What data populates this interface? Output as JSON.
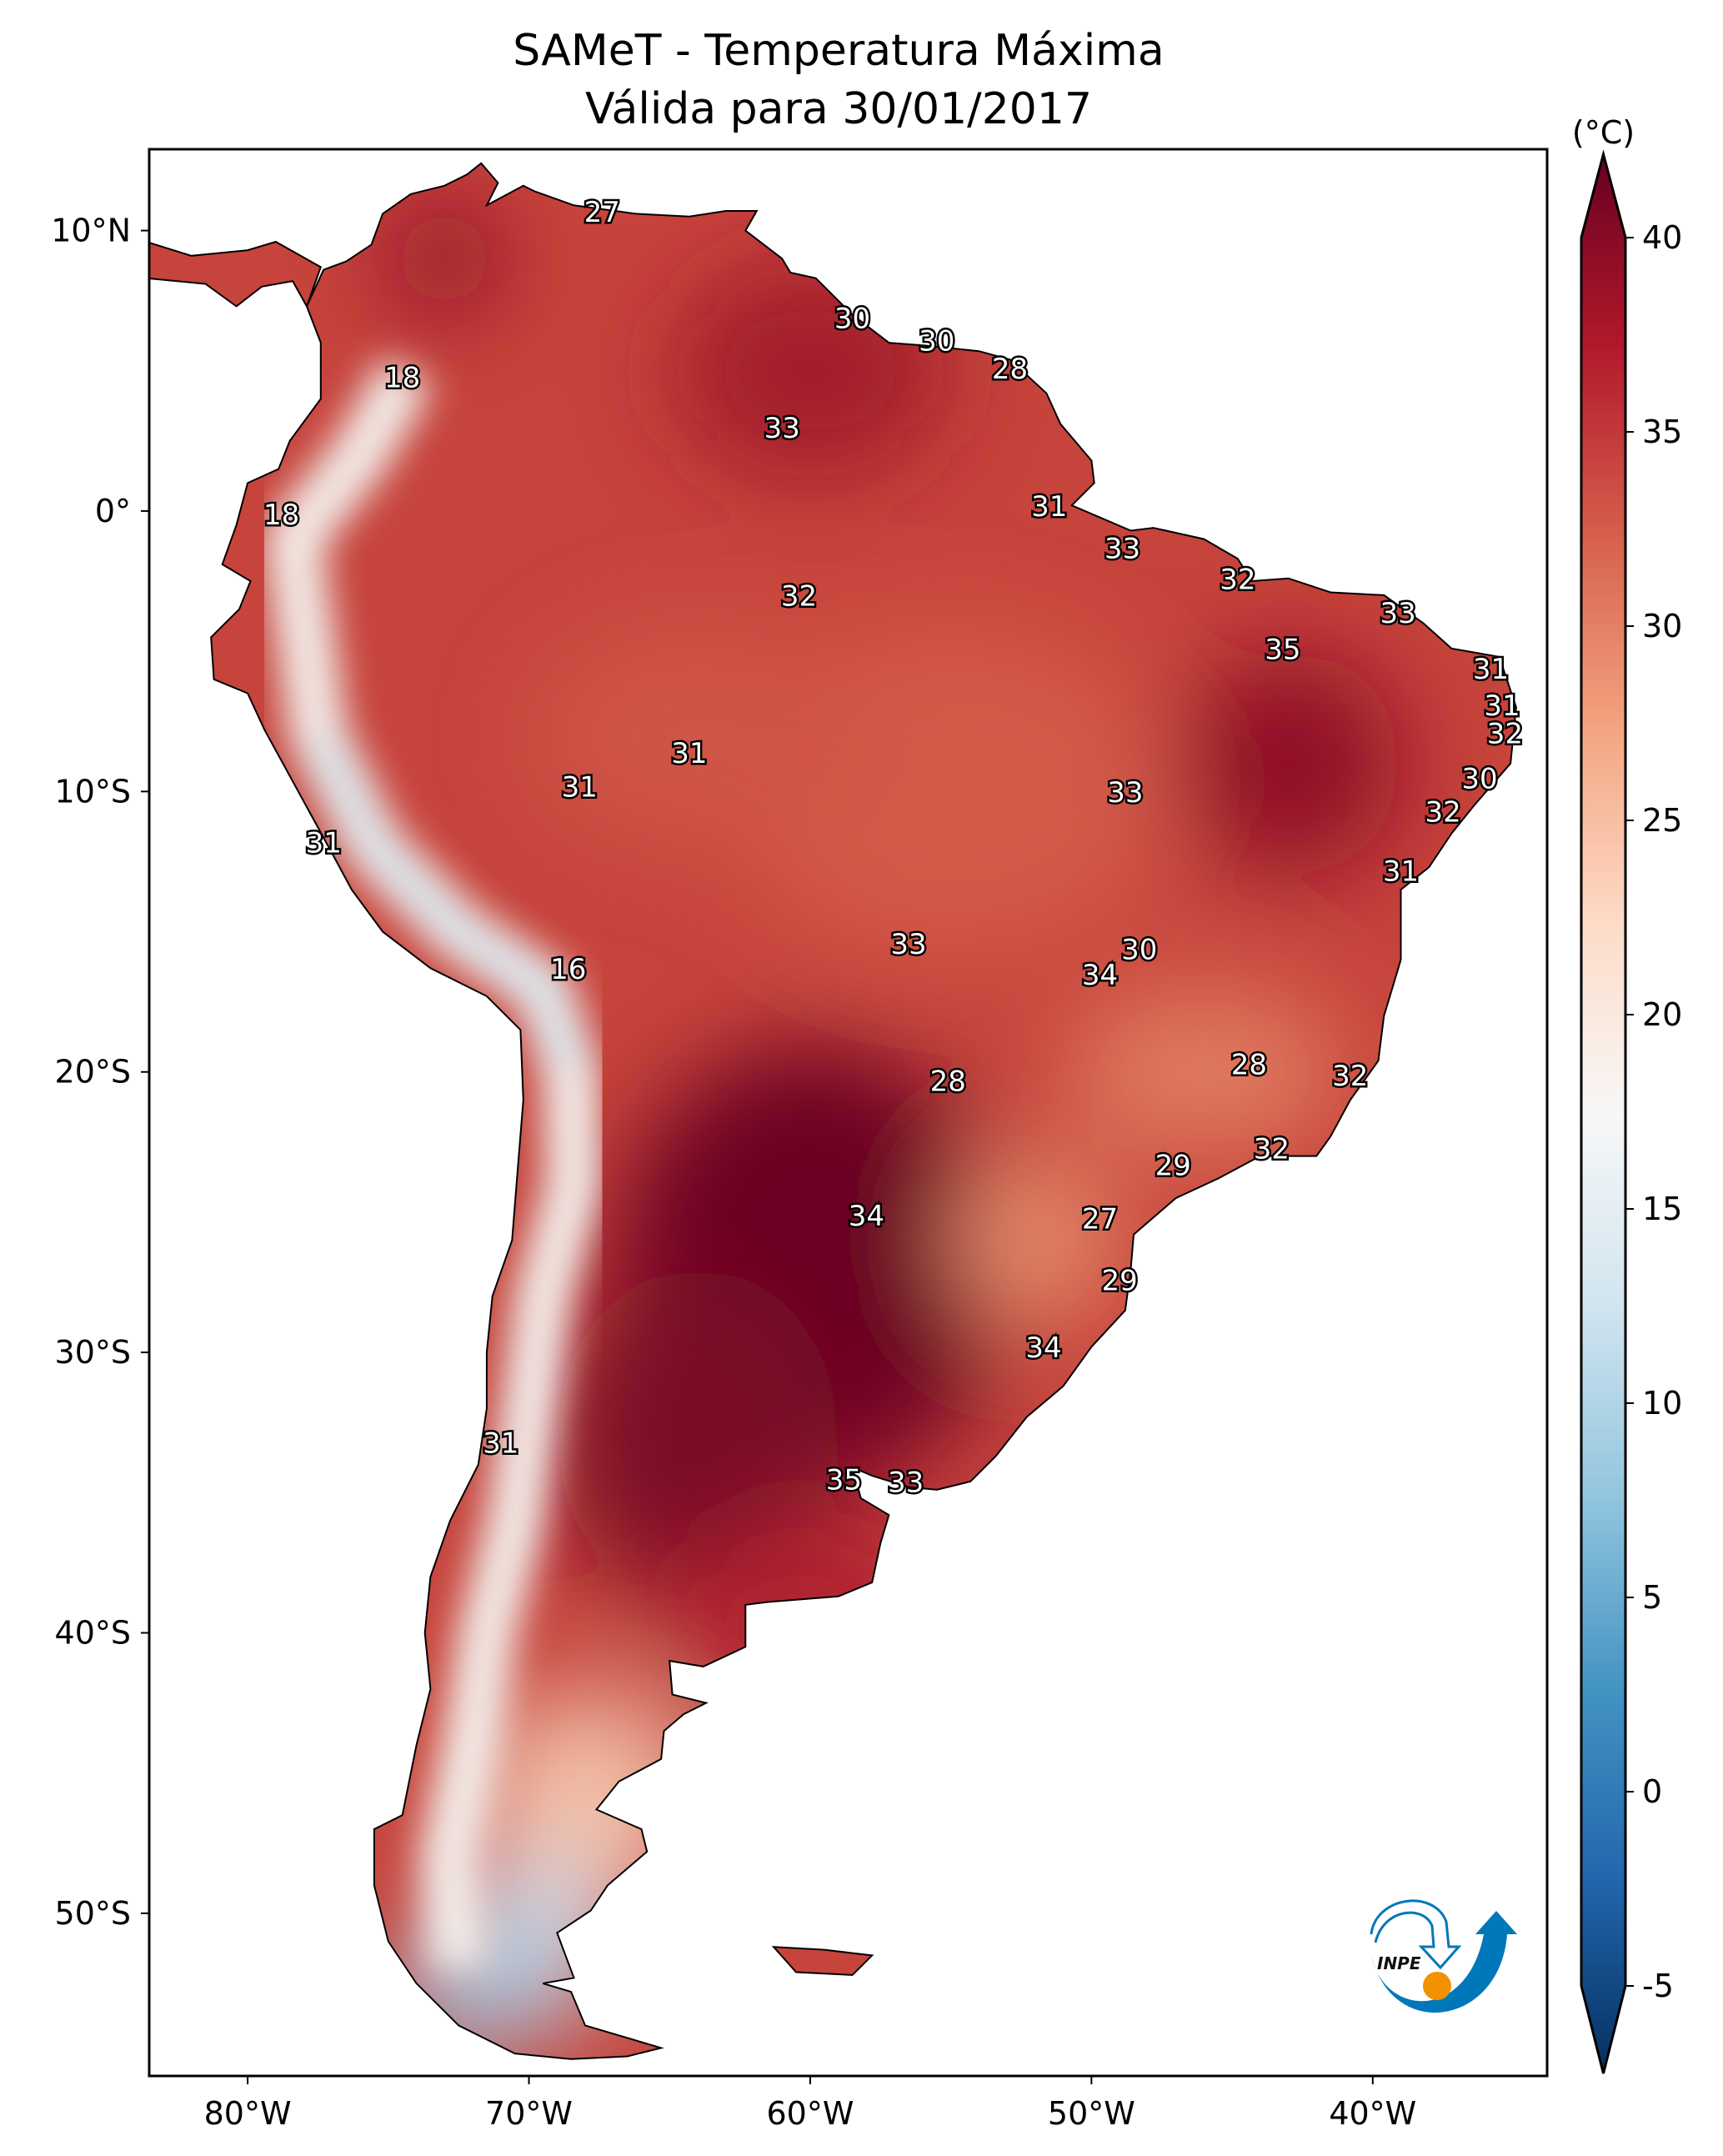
{
  "title": {
    "line1": "SAMeT - Temperatura Máxima",
    "line2": "Válida para 30/01/2017"
  },
  "logo": {
    "text": "INPE"
  },
  "chart_data": {
    "type": "map",
    "extent": {
      "lon": [
        -83.5,
        -33.8
      ],
      "lat": [
        -55.8,
        12.9
      ]
    },
    "x_ticks": [
      {
        "value": -80,
        "label": "80°W"
      },
      {
        "value": -70,
        "label": "70°W"
      },
      {
        "value": -60,
        "label": "60°W"
      },
      {
        "value": -50,
        "label": "50°W"
      },
      {
        "value": -40,
        "label": "40°W"
      }
    ],
    "y_ticks": [
      {
        "value": 10,
        "label": "10°N"
      },
      {
        "value": 0,
        "label": "0°"
      },
      {
        "value": -10,
        "label": "10°S"
      },
      {
        "value": -20,
        "label": "20°S"
      },
      {
        "value": -30,
        "label": "30°S"
      },
      {
        "value": -40,
        "label": "40°S"
      },
      {
        "value": -50,
        "label": "50°S"
      }
    ],
    "colorbar": {
      "unit": "(°C)",
      "range": [
        -5,
        40
      ],
      "extend": "both",
      "colormap": "RdBu_r",
      "ticks": [
        -5,
        0,
        5,
        10,
        15,
        20,
        25,
        30,
        35,
        40
      ],
      "colors": [
        "#053061",
        "#2166ac",
        "#4393c3",
        "#92c5de",
        "#d1e5f0",
        "#f7f7f7",
        "#fddbc7",
        "#f4a582",
        "#d6604d",
        "#b2182b",
        "#67001f"
      ]
    },
    "station_labels": [
      {
        "lon": -67.4,
        "lat": 10.6,
        "value": "27"
      },
      {
        "lon": -58.5,
        "lat": 6.8,
        "value": "30"
      },
      {
        "lon": -55.5,
        "lat": 6.0,
        "value": "30"
      },
      {
        "lon": -52.9,
        "lat": 5.0,
        "value": "28"
      },
      {
        "lon": -74.5,
        "lat": 4.7,
        "value": "18"
      },
      {
        "lon": -61.0,
        "lat": 2.9,
        "value": "33"
      },
      {
        "lon": -78.8,
        "lat": -0.2,
        "value": "18"
      },
      {
        "lon": -51.5,
        "lat": 0.1,
        "value": "31"
      },
      {
        "lon": -48.9,
        "lat": -1.4,
        "value": "33"
      },
      {
        "lon": -60.4,
        "lat": -3.1,
        "value": "32"
      },
      {
        "lon": -44.8,
        "lat": -2.5,
        "value": "32"
      },
      {
        "lon": -39.1,
        "lat": -3.7,
        "value": "33"
      },
      {
        "lon": -43.2,
        "lat": -5.0,
        "value": "35"
      },
      {
        "lon": -35.8,
        "lat": -5.7,
        "value": "31"
      },
      {
        "lon": -35.4,
        "lat": -7.0,
        "value": "31"
      },
      {
        "lon": -35.3,
        "lat": -8.0,
        "value": "32"
      },
      {
        "lon": -64.3,
        "lat": -8.7,
        "value": "31"
      },
      {
        "lon": -68.2,
        "lat": -9.9,
        "value": "31"
      },
      {
        "lon": -48.8,
        "lat": -10.1,
        "value": "33"
      },
      {
        "lon": -36.2,
        "lat": -9.6,
        "value": "30"
      },
      {
        "lon": -37.5,
        "lat": -10.8,
        "value": "32"
      },
      {
        "lon": -77.3,
        "lat": -11.9,
        "value": "31"
      },
      {
        "lon": -39.0,
        "lat": -12.9,
        "value": "31"
      },
      {
        "lon": -56.5,
        "lat": -15.5,
        "value": "33"
      },
      {
        "lon": -48.3,
        "lat": -15.7,
        "value": "30"
      },
      {
        "lon": -68.6,
        "lat": -16.4,
        "value": "16"
      },
      {
        "lon": -49.7,
        "lat": -16.6,
        "value": "34"
      },
      {
        "lon": -55.1,
        "lat": -20.4,
        "value": "28"
      },
      {
        "lon": -44.4,
        "lat": -19.8,
        "value": "28"
      },
      {
        "lon": -40.8,
        "lat": -20.2,
        "value": "32"
      },
      {
        "lon": -43.6,
        "lat": -22.8,
        "value": "32"
      },
      {
        "lon": -47.1,
        "lat": -23.4,
        "value": "29"
      },
      {
        "lon": -58.0,
        "lat": -25.2,
        "value": "34"
      },
      {
        "lon": -49.7,
        "lat": -25.3,
        "value": "27"
      },
      {
        "lon": -49.0,
        "lat": -27.5,
        "value": "29"
      },
      {
        "lon": -51.7,
        "lat": -29.9,
        "value": "34"
      },
      {
        "lon": -71.0,
        "lat": -33.3,
        "value": "31"
      },
      {
        "lon": -58.8,
        "lat": -34.6,
        "value": "35"
      },
      {
        "lon": -56.6,
        "lat": -34.7,
        "value": "33"
      }
    ]
  }
}
